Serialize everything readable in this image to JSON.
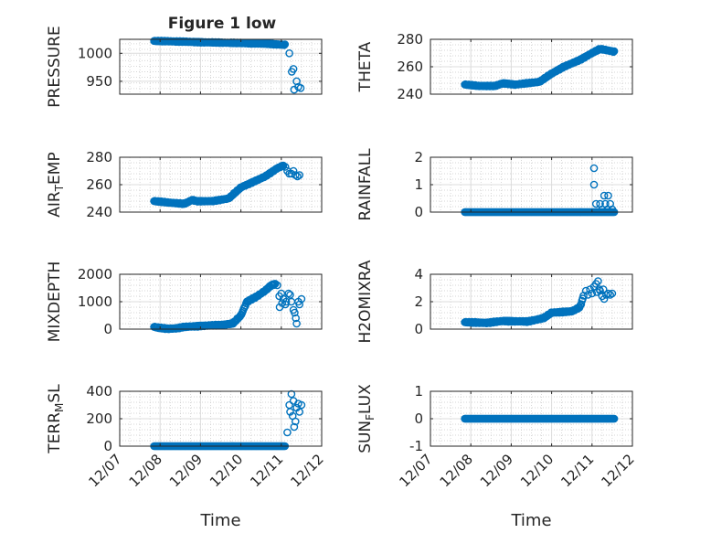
{
  "figure": {
    "title": "Figure 1 low"
  },
  "chart_data": [
    {
      "type": "scatter",
      "ylabel_parts": [
        "PRESSURE"
      ],
      "xlabel": "",
      "title": "Figure 1 low",
      "xlim": [
        0,
        5
      ],
      "ylim": [
        927,
        1025
      ],
      "yticks": [
        950,
        1000
      ],
      "ytick_labels": [
        "950",
        "1000"
      ],
      "xticks": [
        0,
        1,
        2,
        3,
        4,
        5
      ],
      "xtick_labels": [],
      "grid": true,
      "marker": "circle-open",
      "color": "#0072BD",
      "segments": [
        {
          "x0": 0.85,
          "x1": 4.1,
          "step": 0.02,
          "y": [
            [
              0.85,
              1022
            ],
            [
              1.5,
              1021
            ],
            [
              2.5,
              1019
            ],
            [
              3.2,
              1018
            ],
            [
              3.7,
              1017
            ],
            [
              4.1,
              1015
            ]
          ],
          "noise": 1
        }
      ],
      "points": [
        [
          4.2,
          1000
        ],
        [
          4.26,
          967
        ],
        [
          4.3,
          972
        ],
        [
          4.32,
          935
        ],
        [
          4.38,
          950
        ],
        [
          4.42,
          940
        ],
        [
          4.48,
          938
        ]
      ]
    },
    {
      "type": "scatter",
      "ylabel_parts": [
        "THETA"
      ],
      "xlabel": "",
      "title": "",
      "xlim": [
        0,
        5
      ],
      "ylim": [
        240,
        280
      ],
      "yticks": [
        240,
        260,
        280
      ],
      "ytick_labels": [
        "240",
        "260",
        "280"
      ],
      "xticks": [
        0,
        1,
        2,
        3,
        4,
        5
      ],
      "xtick_labels": [],
      "grid": true,
      "marker": "circle-open",
      "color": "#0072BD",
      "segments": [
        {
          "x0": 0.85,
          "x1": 4.55,
          "step": 0.02,
          "y": [
            [
              0.85,
              247
            ],
            [
              1.2,
              246
            ],
            [
              1.6,
              246
            ],
            [
              1.8,
              248
            ],
            [
              2.1,
              247
            ],
            [
              2.4,
              248
            ],
            [
              2.7,
              249
            ],
            [
              3.0,
              255
            ],
            [
              3.3,
              260
            ],
            [
              3.7,
              265
            ],
            [
              4.0,
              270
            ],
            [
              4.2,
              273
            ],
            [
              4.55,
              271
            ]
          ],
          "noise": 0.4
        }
      ],
      "points": []
    },
    {
      "type": "scatter",
      "ylabel_parts": [
        "AIR",
        "T",
        "EMP"
      ],
      "xlabel": "",
      "title": "",
      "xlim": [
        0,
        5
      ],
      "ylim": [
        240,
        280
      ],
      "yticks": [
        240,
        260,
        280
      ],
      "ytick_labels": [
        "240",
        "260",
        "280"
      ],
      "xticks": [
        0,
        1,
        2,
        3,
        4,
        5
      ],
      "xtick_labels": [],
      "grid": true,
      "marker": "circle-open",
      "color": "#0072BD",
      "segments": [
        {
          "x0": 0.85,
          "x1": 4.05,
          "step": 0.02,
          "y": [
            [
              0.85,
              248
            ],
            [
              1.2,
              247
            ],
            [
              1.6,
              246
            ],
            [
              1.8,
              249
            ],
            [
              1.9,
              248
            ],
            [
              2.3,
              248
            ],
            [
              2.7,
              250
            ],
            [
              3.0,
              258
            ],
            [
              3.3,
              262
            ],
            [
              3.6,
              266
            ],
            [
              3.9,
              272
            ],
            [
              4.05,
              274
            ]
          ],
          "noise": 0.4
        }
      ],
      "points": [
        [
          4.1,
          273
        ],
        [
          4.15,
          270
        ],
        [
          4.2,
          268
        ],
        [
          4.25,
          268
        ],
        [
          4.3,
          270
        ],
        [
          4.35,
          267
        ],
        [
          4.4,
          266
        ],
        [
          4.45,
          267
        ]
      ]
    },
    {
      "type": "scatter",
      "ylabel_parts": [
        "RAINFALL"
      ],
      "xlabel": "",
      "title": "",
      "xlim": [
        0,
        5
      ],
      "ylim": [
        0,
        2
      ],
      "yticks": [
        0,
        1,
        2
      ],
      "ytick_labels": [
        "0",
        "1",
        "2"
      ],
      "xticks": [
        0,
        1,
        2,
        3,
        4,
        5
      ],
      "xtick_labels": [],
      "grid": true,
      "marker": "circle-open",
      "color": "#0072BD",
      "segments": [
        {
          "x0": 0.85,
          "x1": 4.55,
          "step": 0.02,
          "y": [
            [
              0.85,
              0
            ],
            [
              4.55,
              0
            ]
          ],
          "noise": 0
        }
      ],
      "points": [
        [
          4.05,
          1.6
        ],
        [
          4.05,
          1.0
        ],
        [
          4.1,
          0.3
        ],
        [
          4.2,
          0.3
        ],
        [
          4.25,
          0.1
        ],
        [
          4.3,
          0.6
        ],
        [
          4.33,
          0.3
        ],
        [
          4.38,
          0.1
        ],
        [
          4.4,
          0.6
        ],
        [
          4.45,
          0.3
        ],
        [
          4.5,
          0.1
        ]
      ]
    },
    {
      "type": "scatter",
      "ylabel_parts": [
        "MIXDEPTH"
      ],
      "xlabel": "",
      "title": "",
      "xlim": [
        0,
        5
      ],
      "ylim": [
        0,
        2000
      ],
      "yticks": [
        0,
        1000,
        2000
      ],
      "ytick_labels": [
        "0",
        "1000",
        "2000"
      ],
      "xticks": [
        0,
        1,
        2,
        3,
        4,
        5
      ],
      "xtick_labels": [],
      "grid": true,
      "marker": "circle-open",
      "color": "#0072BD",
      "segments": [
        {
          "x0": 0.85,
          "x1": 3.85,
          "step": 0.02,
          "y": [
            [
              0.85,
              80
            ],
            [
              1.0,
              40
            ],
            [
              1.2,
              10
            ],
            [
              1.4,
              30
            ],
            [
              1.6,
              80
            ],
            [
              2.0,
              120
            ],
            [
              2.5,
              150
            ],
            [
              2.8,
              200
            ],
            [
              3.0,
              500
            ],
            [
              3.15,
              1000
            ],
            [
              3.4,
              1200
            ],
            [
              3.6,
              1400
            ],
            [
              3.75,
              1600
            ],
            [
              3.85,
              1650
            ]
          ],
          "noise": 25
        }
      ],
      "points": [
        [
          3.9,
          1600
        ],
        [
          3.95,
          1200
        ],
        [
          4.0,
          1300
        ],
        [
          4.05,
          1100
        ],
        [
          4.1,
          900
        ],
        [
          4.12,
          1000
        ],
        [
          4.18,
          1300
        ],
        [
          4.22,
          1250
        ],
        [
          4.25,
          1000
        ],
        [
          4.3,
          700
        ],
        [
          4.33,
          600
        ],
        [
          4.36,
          400
        ],
        [
          4.38,
          200
        ],
        [
          4.42,
          1000
        ],
        [
          4.45,
          900
        ],
        [
          4.5,
          1100
        ],
        [
          3.96,
          800
        ],
        [
          4.02,
          950
        ]
      ]
    },
    {
      "type": "scatter",
      "ylabel_parts": [
        "H2OMIXRA"
      ],
      "xlabel": "",
      "title": "",
      "xlim": [
        0,
        5
      ],
      "ylim": [
        0,
        4
      ],
      "yticks": [
        0,
        2,
        4
      ],
      "ytick_labels": [
        "0",
        "2",
        "4"
      ],
      "xticks": [
        0,
        1,
        2,
        3,
        4,
        5
      ],
      "xtick_labels": [],
      "grid": true,
      "marker": "circle-open",
      "color": "#0072BD",
      "segments": [
        {
          "x0": 0.85,
          "x1": 3.8,
          "step": 0.02,
          "y": [
            [
              0.85,
              0.5
            ],
            [
              1.4,
              0.45
            ],
            [
              1.8,
              0.6
            ],
            [
              2.4,
              0.55
            ],
            [
              2.8,
              0.8
            ],
            [
              3.0,
              1.2
            ],
            [
              3.5,
              1.3
            ],
            [
              3.7,
              1.6
            ],
            [
              3.8,
              2.5
            ]
          ],
          "noise": 0.05
        }
      ],
      "points": [
        [
          3.85,
          2.8
        ],
        [
          3.9,
          2.5
        ],
        [
          3.95,
          2.9
        ],
        [
          4.0,
          2.6
        ],
        [
          4.05,
          3.1
        ],
        [
          4.1,
          3.3
        ],
        [
          4.12,
          2.7
        ],
        [
          4.15,
          3.5
        ],
        [
          4.2,
          2.8
        ],
        [
          4.25,
          2.4
        ],
        [
          4.3,
          2.2
        ],
        [
          4.35,
          2.5
        ],
        [
          4.4,
          2.6
        ],
        [
          4.45,
          2.5
        ],
        [
          4.5,
          2.6
        ],
        [
          4.18,
          2.9
        ],
        [
          4.28,
          2.9
        ]
      ]
    },
    {
      "type": "scatter",
      "ylabel_parts": [
        "TERR",
        "M",
        "SL"
      ],
      "xlabel": "Time",
      "title": "",
      "xlim": [
        0,
        5
      ],
      "ylim": [
        0,
        400
      ],
      "yticks": [
        0,
        200,
        400
      ],
      "ytick_labels": [
        "0",
        "200",
        "400"
      ],
      "xticks": [
        0,
        1,
        2,
        3,
        4,
        5
      ],
      "xtick_labels": [
        "12/07",
        "12/08",
        "12/09",
        "12/10",
        "12/11",
        "12/12"
      ],
      "grid": true,
      "marker": "circle-open",
      "color": "#0072BD",
      "segments": [
        {
          "x0": 0.85,
          "x1": 4.1,
          "step": 0.02,
          "y": [
            [
              0.85,
              0
            ],
            [
              4.1,
              0
            ]
          ],
          "noise": 0
        }
      ],
      "points": [
        [
          4.15,
          100
        ],
        [
          4.2,
          300
        ],
        [
          4.22,
          250
        ],
        [
          4.25,
          380
        ],
        [
          4.28,
          220
        ],
        [
          4.3,
          330
        ],
        [
          4.35,
          180
        ],
        [
          4.38,
          280
        ],
        [
          4.42,
          310
        ],
        [
          4.45,
          250
        ],
        [
          4.32,
          140
        ],
        [
          4.5,
          300
        ]
      ]
    },
    {
      "type": "scatter",
      "ylabel_parts": [
        "SUN",
        "F",
        "LUX"
      ],
      "xlabel": "Time",
      "title": "",
      "xlim": [
        0,
        5
      ],
      "ylim": [
        -1,
        1
      ],
      "yticks": [
        -1,
        0,
        1
      ],
      "ytick_labels": [
        "-1",
        "0",
        "1"
      ],
      "xticks": [
        0,
        1,
        2,
        3,
        4,
        5
      ],
      "xtick_labels": [
        "12/07",
        "12/08",
        "12/09",
        "12/10",
        "12/11",
        "12/12"
      ],
      "grid": true,
      "marker": "circle-open",
      "color": "#0072BD",
      "segments": [
        {
          "x0": 0.85,
          "x1": 4.55,
          "step": 0.02,
          "y": [
            [
              0.85,
              0
            ],
            [
              4.55,
              0
            ]
          ],
          "noise": 0
        }
      ],
      "points": []
    }
  ]
}
